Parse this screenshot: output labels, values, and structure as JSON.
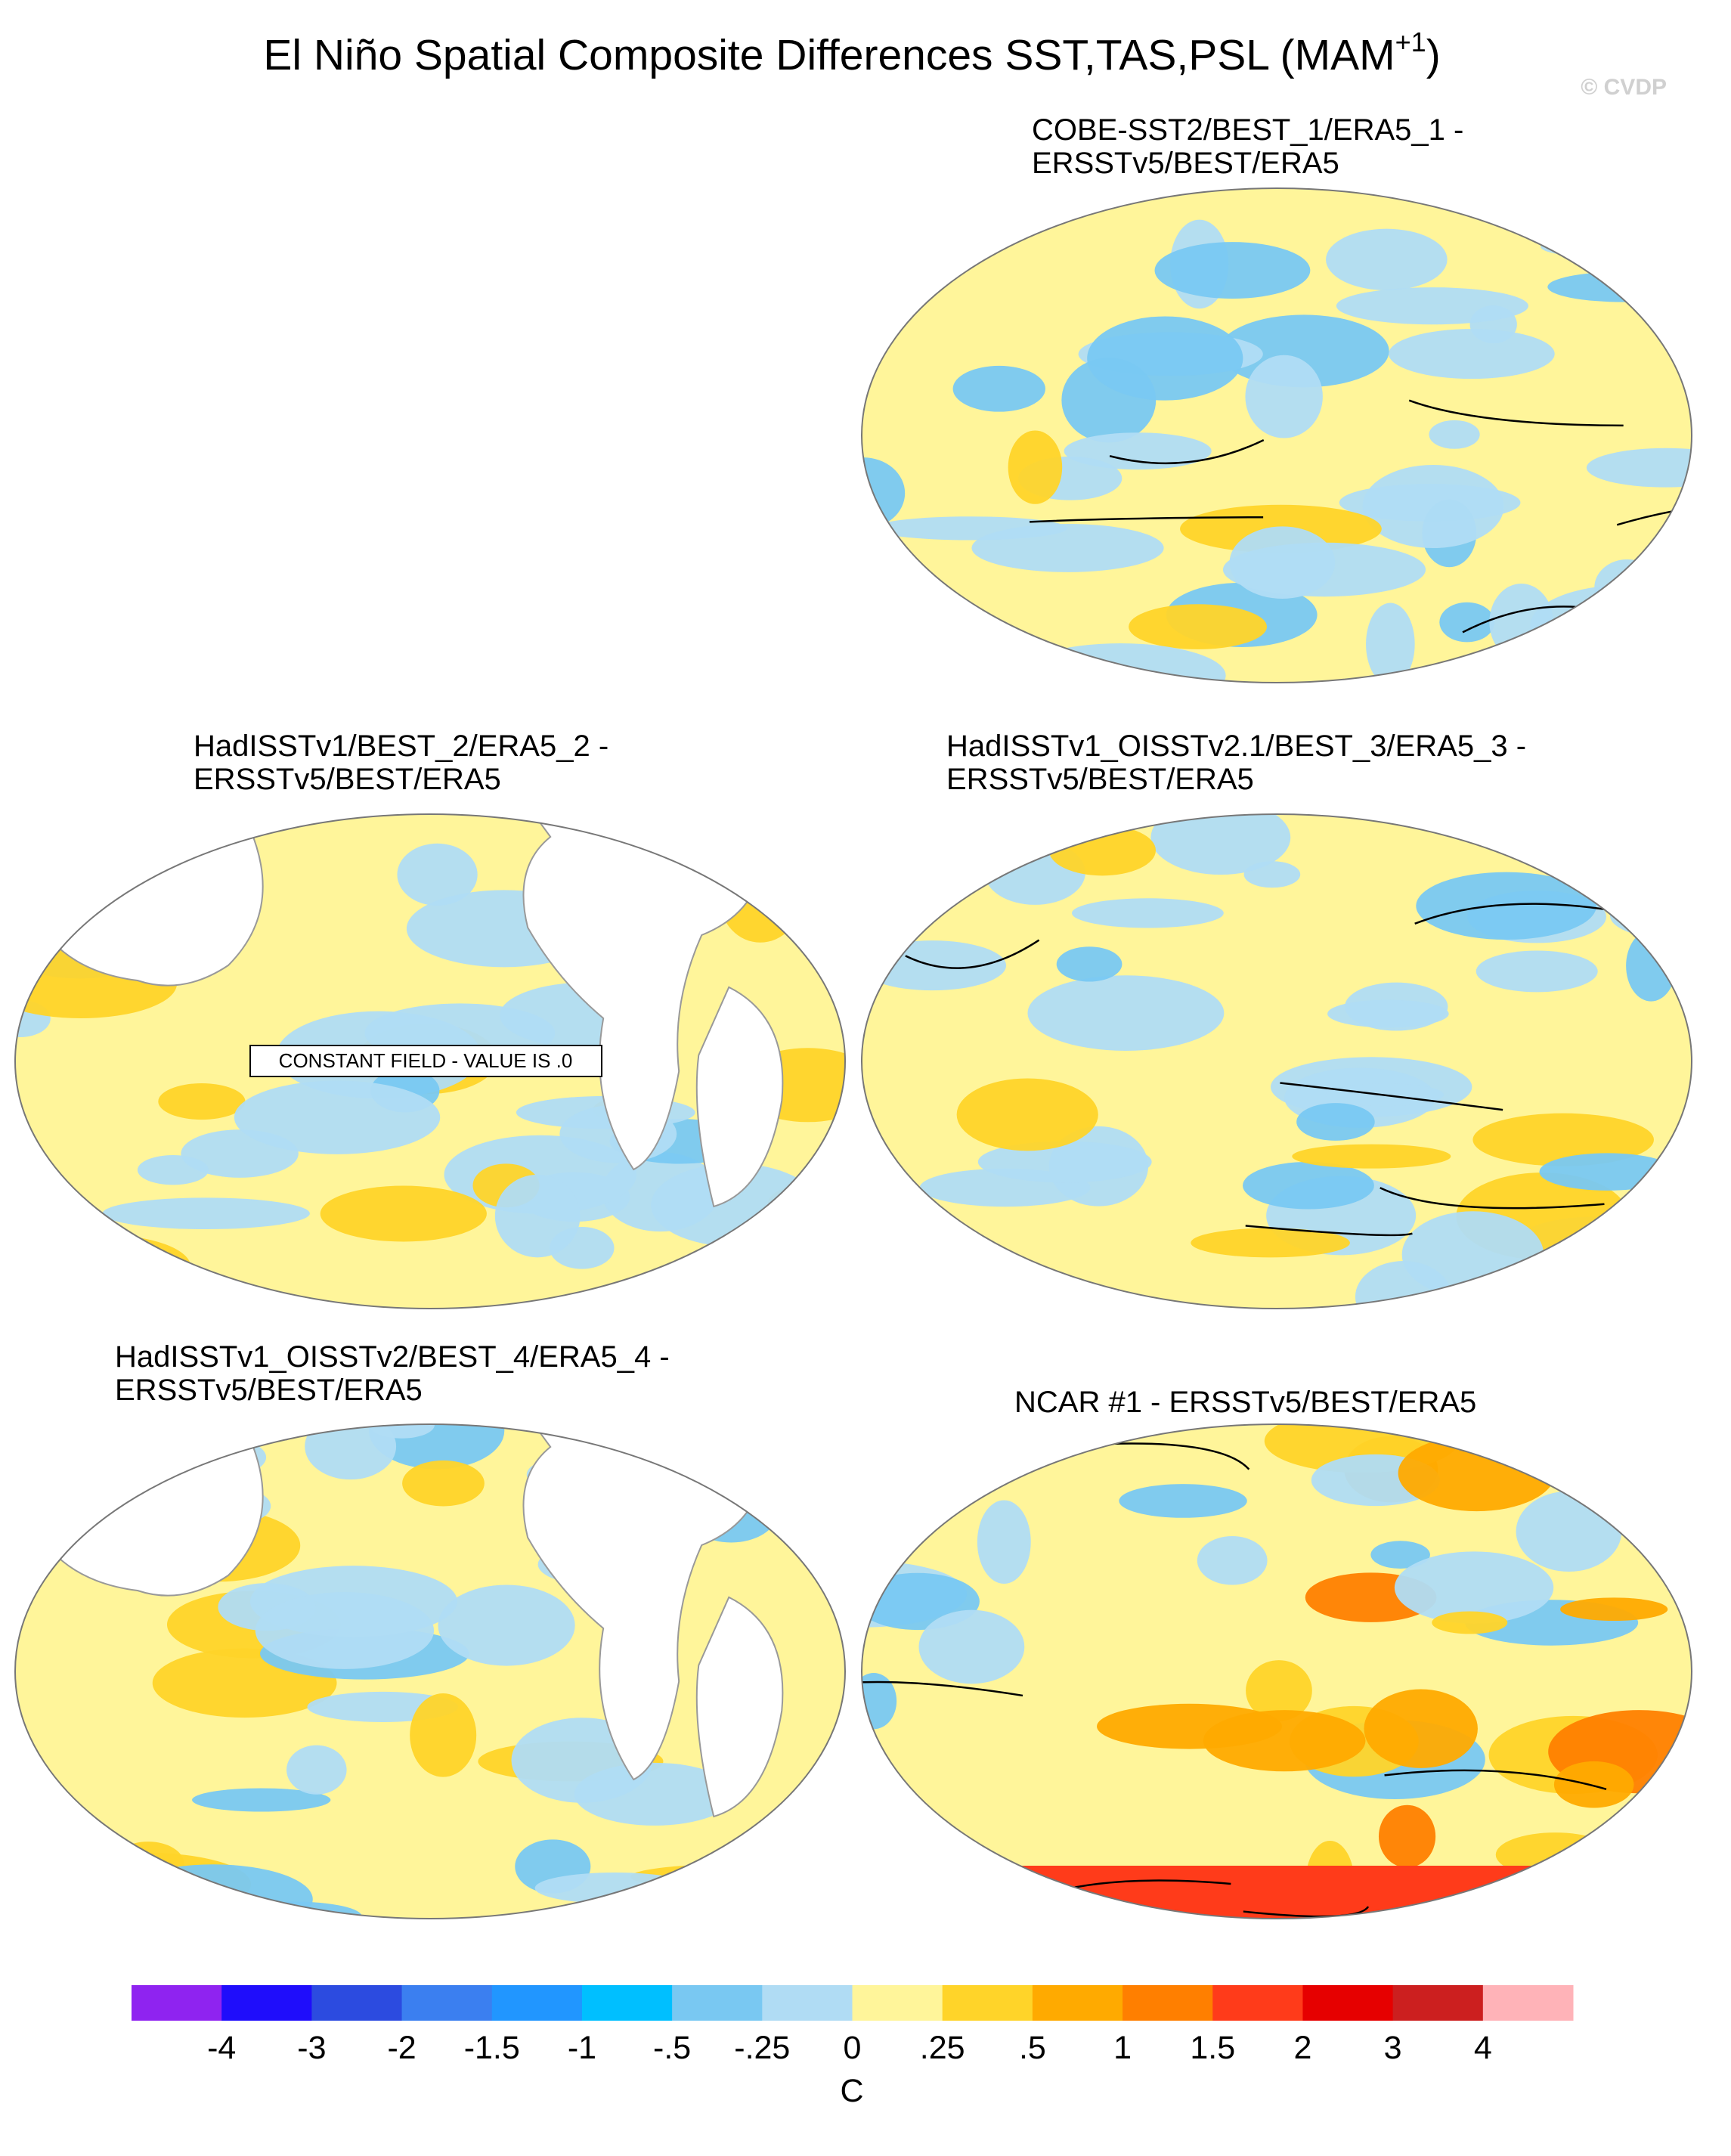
{
  "title": {
    "main": "El Niño Spatial Composite Differences SST,TAS,PSL (MAM",
    "superscript": "+1",
    "close": ")"
  },
  "copyright": "© CVDP",
  "panels": [
    {
      "title": [
        "COBE-SST2/BEST_1/ERA5_1 -",
        "ERSSTv5/BEST/ERA5"
      ]
    },
    {
      "title": [
        "HadISSTv1/BEST_2/ERA5_2 -",
        "ERSSTv5/BEST/ERA5"
      ],
      "note": "CONSTANT FIELD - VALUE IS .0"
    },
    {
      "title": [
        "HadISSTv1_OISSTv2.1/BEST_3/ERA5_3 -",
        "ERSSTv5/BEST/ERA5"
      ]
    },
    {
      "title": [
        "HadISSTv1_OISSTv2/BEST_4/ERA5_4 -",
        "ERSSTv5/BEST/ERA5"
      ]
    },
    {
      "title": [
        "NCAR #1 - ERSSTv5/BEST/ERA5"
      ]
    }
  ],
  "colorbar": {
    "colors": [
      "#8f23f0",
      "#1f0dfb",
      "#2c4be0",
      "#3b7ff0",
      "#2196ff",
      "#00bfff",
      "#79c8f2",
      "#b0dcf4",
      "#fff59a",
      "#ffd429",
      "#ffaa00",
      "#ff7f00",
      "#ff3b1a",
      "#e60000",
      "#cc1f1f",
      "#ffb3b8"
    ],
    "labels": [
      "-4",
      "-3",
      "-2",
      "-1.5",
      "-1",
      "-.5",
      "-.25",
      "0",
      ".25",
      ".5",
      "1",
      "1.5",
      "2",
      "3",
      "4"
    ],
    "units": "C"
  }
}
